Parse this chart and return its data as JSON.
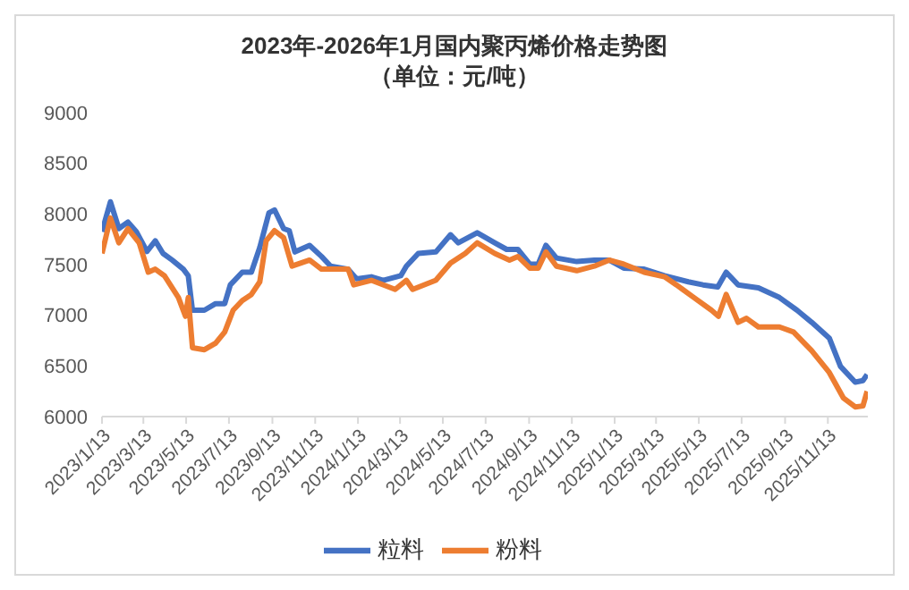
{
  "chart_data": {
    "type": "line",
    "title": "2023年-2026年1月国内聚丙烯价格走势图",
    "subtitle": "（单位：元/吨）",
    "xlim": [
      "2023-01-13",
      "2026-01-09"
    ],
    "xticks": [
      {
        "value": "2023-01-13",
        "label": "2023/1/13"
      },
      {
        "value": "2023-03-13",
        "label": "2023/3/13"
      },
      {
        "value": "2023-05-13",
        "label": "2023/5/13"
      },
      {
        "value": "2023-07-13",
        "label": "2023/7/13"
      },
      {
        "value": "2023-09-13",
        "label": "2023/9/13"
      },
      {
        "value": "2023-11-13",
        "label": "2023/11/13"
      },
      {
        "value": "2024-01-13",
        "label": "2024/1/13"
      },
      {
        "value": "2024-03-13",
        "label": "2024/3/13"
      },
      {
        "value": "2024-05-13",
        "label": "2024/5/13"
      },
      {
        "value": "2024-07-13",
        "label": "2024/7/13"
      },
      {
        "value": "2024-09-13",
        "label": "2024/9/13"
      },
      {
        "value": "2024-11-13",
        "label": "2024/11/13"
      },
      {
        "value": "2025-01-13",
        "label": "2025/1/13"
      },
      {
        "value": "2025-03-13",
        "label": "2025/3/13"
      },
      {
        "value": "2025-05-13",
        "label": "2025/5/13"
      },
      {
        "value": "2025-07-13",
        "label": "2025/7/13"
      },
      {
        "value": "2025-09-13",
        "label": "2025/9/13"
      },
      {
        "value": "2025-11-13",
        "label": "2025/11/13"
      }
    ],
    "ylim": [
      6000,
      9000
    ],
    "yticks": [
      6000,
      6500,
      7000,
      7500,
      8000,
      8500,
      9000
    ],
    "legend": "bottom",
    "marker": "none",
    "line_style": "solid",
    "series": [
      {
        "name": "粒料",
        "color": "#4472c4",
        "x": [
          "2023-01-13",
          "2023-01-25",
          "2023-02-06",
          "2023-02-19",
          "2023-03-03",
          "2023-03-18",
          "2023-03-30",
          "2023-04-10",
          "2023-04-23",
          "2023-05-09",
          "2023-05-16",
          "2023-05-22",
          "2023-06-08",
          "2023-06-24",
          "2023-07-07",
          "2023-07-15",
          "2023-08-01",
          "2023-08-14",
          "2023-08-26",
          "2023-09-08",
          "2023-09-16",
          "2023-09-29",
          "2023-10-07",
          "2023-10-15",
          "2023-11-05",
          "2023-11-22",
          "2023-12-05",
          "2023-12-30",
          "2024-01-11",
          "2024-02-01",
          "2024-02-18",
          "2024-03-14",
          "2024-03-22",
          "2024-04-08",
          "2024-05-03",
          "2024-05-24",
          "2024-06-04",
          "2024-07-01",
          "2024-07-26",
          "2024-08-12",
          "2024-08-28",
          "2024-09-14",
          "2024-09-26",
          "2024-10-07",
          "2024-10-22",
          "2024-11-20",
          "2024-12-15",
          "2025-01-05",
          "2025-01-26",
          "2025-02-24",
          "2025-03-25",
          "2025-04-28",
          "2025-05-19",
          "2025-06-09",
          "2025-06-21",
          "2025-07-08",
          "2025-08-06",
          "2025-09-05",
          "2025-09-30",
          "2025-10-21",
          "2025-11-15",
          "2025-12-01",
          "2025-12-22",
          "2026-01-02",
          "2026-01-08"
        ],
        "values": [
          7825,
          8120,
          7855,
          7920,
          7825,
          7630,
          7735,
          7610,
          7545,
          7455,
          7390,
          7050,
          7050,
          7115,
          7115,
          7300,
          7425,
          7425,
          7670,
          8010,
          8040,
          7855,
          7835,
          7625,
          7690,
          7580,
          7485,
          7455,
          7360,
          7380,
          7345,
          7390,
          7485,
          7610,
          7625,
          7795,
          7715,
          7815,
          7715,
          7650,
          7650,
          7505,
          7505,
          7690,
          7565,
          7530,
          7545,
          7545,
          7465,
          7455,
          7390,
          7330,
          7300,
          7280,
          7425,
          7300,
          7270,
          7175,
          7050,
          6930,
          6775,
          6495,
          6340,
          6355,
          6415
        ]
      },
      {
        "name": "粉料",
        "color": "#ed7d31",
        "x": [
          "2023-01-13",
          "2023-01-25",
          "2023-02-06",
          "2023-02-19",
          "2023-03-07",
          "2023-03-20",
          "2023-03-30",
          "2023-04-12",
          "2023-05-02",
          "2023-05-12",
          "2023-05-16",
          "2023-05-22",
          "2023-06-08",
          "2023-06-24",
          "2023-07-07",
          "2023-07-19",
          "2023-08-01",
          "2023-08-14",
          "2023-08-26",
          "2023-09-04",
          "2023-09-16",
          "2023-09-29",
          "2023-10-11",
          "2023-11-05",
          "2023-11-22",
          "2023-12-30",
          "2024-01-07",
          "2024-02-01",
          "2024-03-06",
          "2024-03-22",
          "2024-03-31",
          "2024-05-03",
          "2024-05-24",
          "2024-06-14",
          "2024-07-01",
          "2024-07-26",
          "2024-08-16",
          "2024-08-28",
          "2024-09-14",
          "2024-09-26",
          "2024-10-07",
          "2024-10-22",
          "2024-11-20",
          "2024-12-15",
          "2025-01-05",
          "2025-01-26",
          "2025-02-24",
          "2025-03-25",
          "2025-04-11",
          "2025-05-06",
          "2025-05-31",
          "2025-06-10",
          "2025-06-21",
          "2025-07-08",
          "2025-07-20",
          "2025-08-06",
          "2025-09-05",
          "2025-09-25",
          "2025-10-21",
          "2025-11-15",
          "2025-12-05",
          "2025-12-22",
          "2026-01-02",
          "2026-01-08"
        ],
        "values": [
          7610,
          7960,
          7715,
          7855,
          7715,
          7425,
          7455,
          7390,
          7175,
          6990,
          7175,
          6680,
          6660,
          6725,
          6835,
          7050,
          7145,
          7205,
          7330,
          7735,
          7835,
          7765,
          7485,
          7545,
          7455,
          7455,
          7300,
          7345,
          7255,
          7345,
          7255,
          7345,
          7515,
          7610,
          7715,
          7610,
          7545,
          7580,
          7465,
          7465,
          7625,
          7485,
          7440,
          7485,
          7545,
          7505,
          7425,
          7380,
          7300,
          7175,
          7050,
          6990,
          7205,
          6930,
          6970,
          6885,
          6885,
          6835,
          6650,
          6435,
          6185,
          6095,
          6105,
          6250
        ]
      }
    ]
  }
}
